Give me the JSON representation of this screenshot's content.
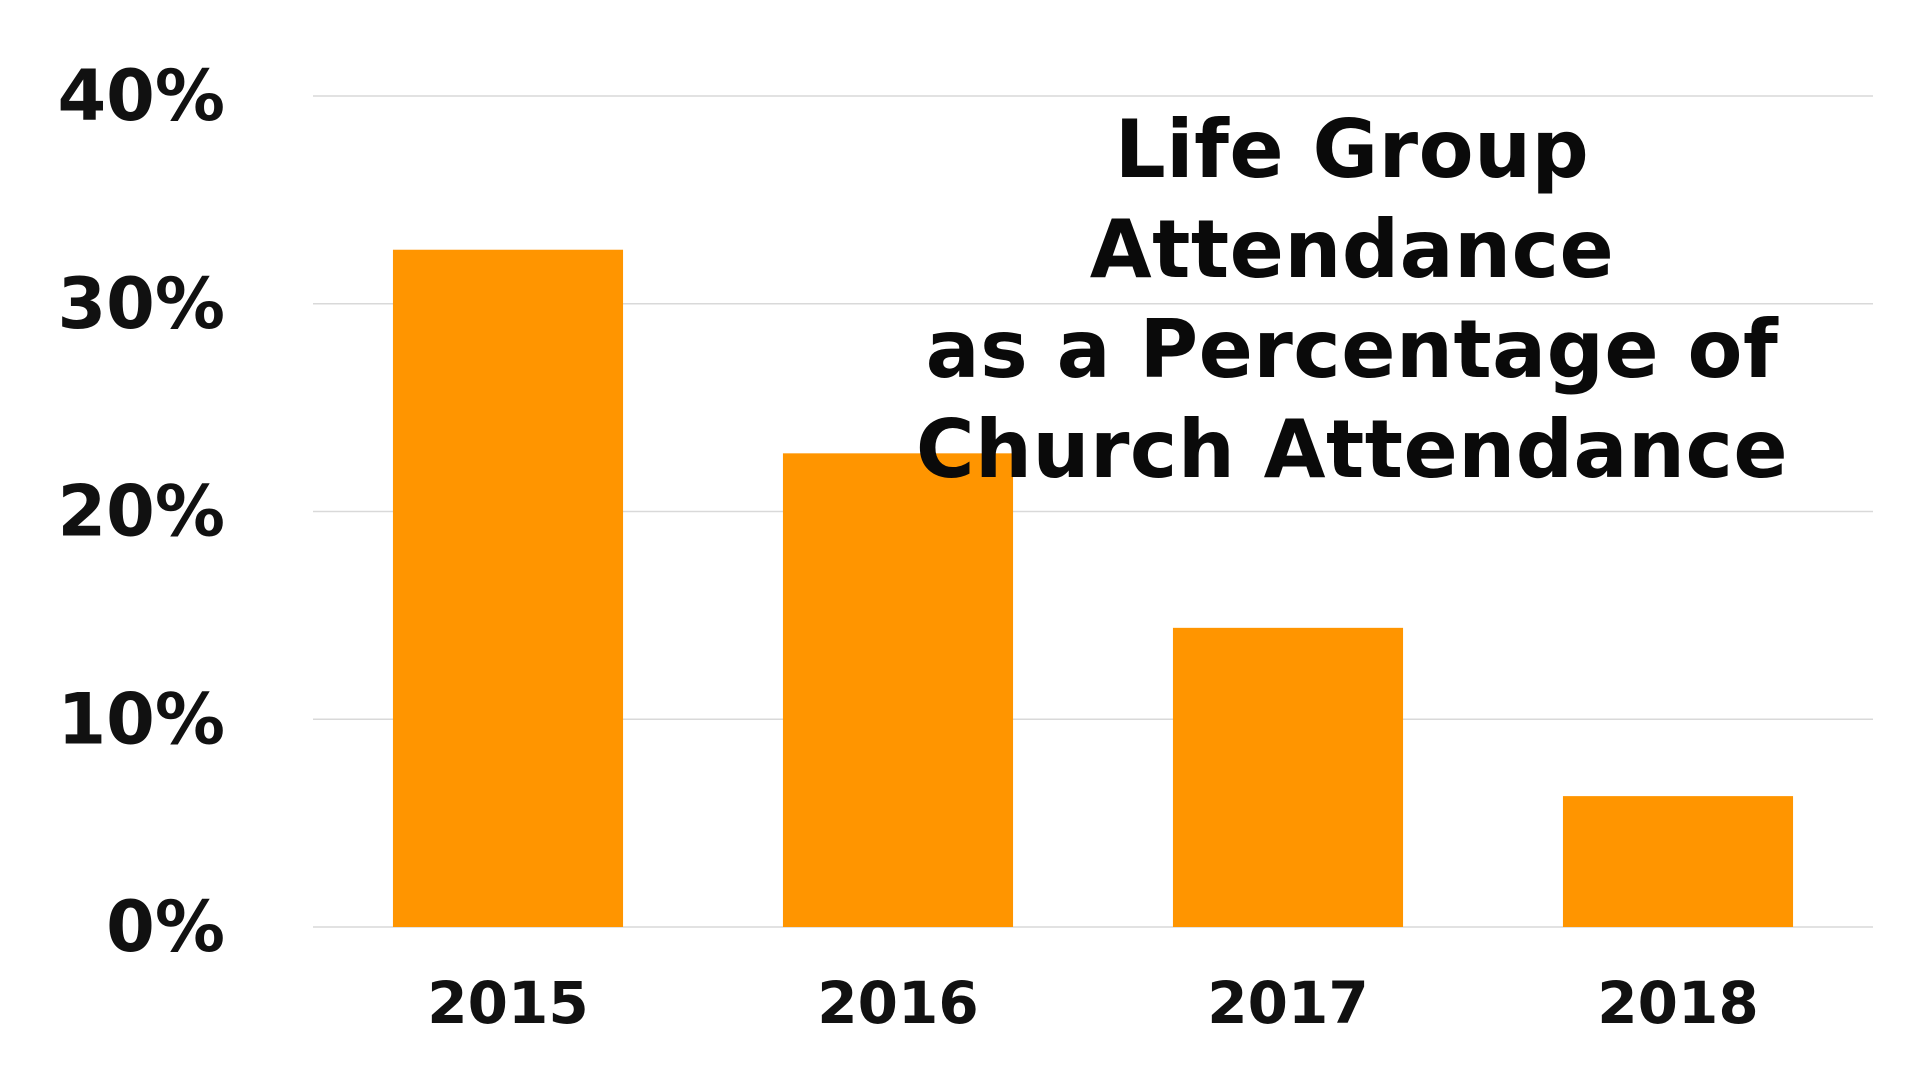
{
  "chart_data": {
    "type": "bar",
    "title": "Life Group Attendance\nas a Percentage of\nChurch Attendance",
    "categories": [
      "2015",
      "2016",
      "2017",
      "2018"
    ],
    "values": [
      32.6,
      22.8,
      14.4,
      6.3
    ],
    "ylim": [
      0,
      40
    ],
    "yticks": [
      0,
      10,
      20,
      30,
      40
    ],
    "ytick_labels": [
      "0%",
      "10%",
      "20%",
      "30%",
      "40%"
    ],
    "xlabel": "",
    "ylabel": "",
    "grid": true,
    "legend": "none",
    "bar_color": "#FF9500"
  }
}
